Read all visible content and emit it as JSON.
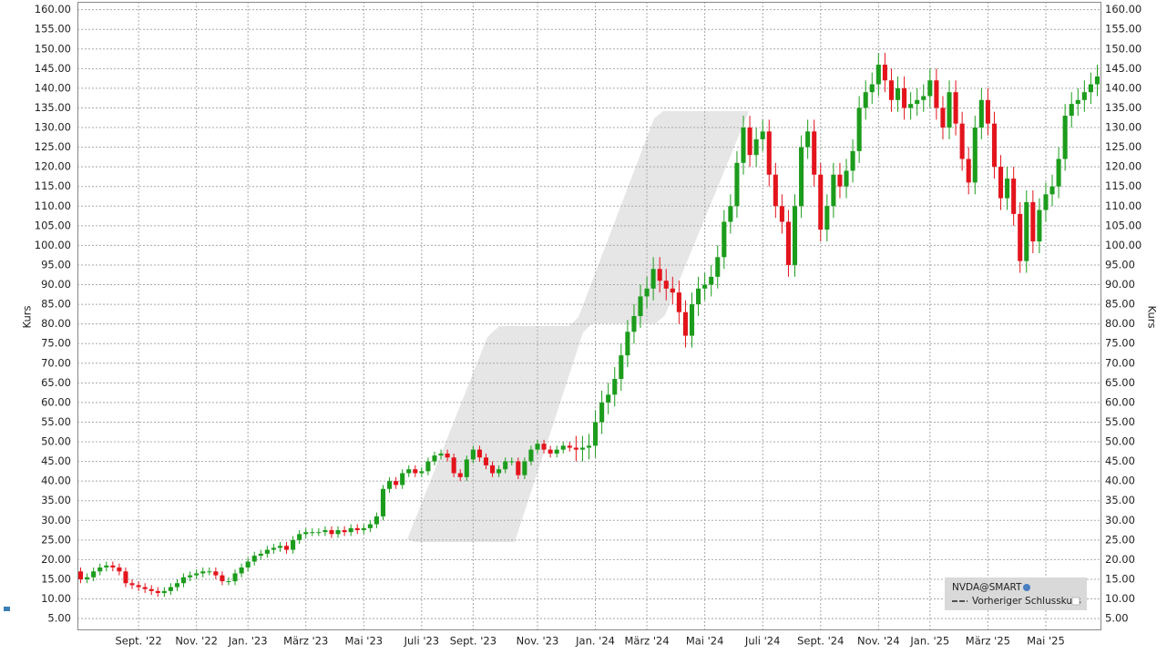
{
  "chart_data": {
    "type": "candlestick",
    "y_label": "Kurs",
    "categories": [
      null,
      null,
      null,
      null,
      null,
      null,
      null,
      null,
      null,
      "Sept. '22",
      null,
      null,
      null,
      null,
      null,
      null,
      null,
      null,
      "Nov. '22",
      null,
      null,
      null,
      null,
      null,
      null,
      null,
      "Jan. '23",
      null,
      null,
      null,
      null,
      null,
      null,
      null,
      null,
      "März '23",
      null,
      null,
      null,
      null,
      null,
      null,
      null,
      null,
      "Mai '23",
      null,
      null,
      null,
      null,
      null,
      null,
      null,
      null,
      "Juli '23",
      null,
      null,
      null,
      null,
      null,
      null,
      null,
      "Sept. '23",
      null,
      null,
      null,
      null,
      null,
      null,
      null,
      null,
      null,
      "Nov. '23",
      null,
      null,
      null,
      null,
      null,
      null,
      null,
      null,
      "Jan. '24",
      null,
      null,
      null,
      null,
      null,
      null,
      null,
      "März '24",
      null,
      null,
      null,
      null,
      null,
      null,
      null,
      null,
      "Mai '24",
      null,
      null,
      null,
      null,
      null,
      null,
      null,
      null,
      "Juli '24",
      null,
      null,
      null,
      null,
      null,
      null,
      null,
      null,
      "Sept. '24",
      null,
      null,
      null,
      null,
      null,
      null,
      null,
      null,
      "Nov. '24",
      null,
      null,
      null,
      null,
      null,
      null,
      null,
      "Jan. '25",
      null,
      null,
      null,
      null,
      null,
      null,
      null,
      null,
      "März '25",
      null,
      null,
      null,
      null,
      null,
      null,
      null,
      null,
      "Mai '25",
      null,
      null,
      null,
      null,
      null,
      null,
      null,
      null
    ],
    "series": [
      {
        "name": "NVDA@SMART",
        "up_color": "#1c9c1c",
        "down_color": "#e3141c",
        "open": [
          17,
          15,
          15.5,
          17,
          18,
          18.5,
          18,
          17,
          14,
          13.5,
          13,
          12.5,
          12,
          11.5,
          12,
          13,
          14,
          15.5,
          16,
          16.5,
          17,
          17,
          16,
          14.5,
          14.5,
          16.5,
          18,
          19.5,
          21,
          21.5,
          22.5,
          23,
          23.5,
          22.5,
          25,
          26.5,
          27,
          27,
          27,
          27.5,
          26.5,
          27.5,
          27,
          28,
          27.5,
          28,
          29,
          31,
          38,
          40,
          39,
          42,
          43,
          42,
          42.5,
          45,
          46.5,
          47,
          46,
          42,
          41,
          45.5,
          48,
          46,
          44,
          42,
          43,
          45,
          45,
          41.5,
          45,
          48,
          49.5,
          48,
          47,
          48,
          49,
          48.5,
          48,
          48.5,
          49,
          55,
          60,
          62,
          66,
          72,
          78,
          82,
          87,
          89,
          94,
          91,
          89,
          88,
          83,
          77,
          85,
          89,
          90,
          92,
          97,
          106,
          110,
          121,
          130,
          123,
          127,
          129,
          118,
          110,
          106,
          95,
          110,
          125,
          129,
          118,
          104,
          110,
          118,
          115,
          119,
          124,
          135,
          139,
          141,
          146,
          142,
          137,
          140,
          135,
          136,
          137,
          138,
          142,
          135,
          130,
          139,
          131,
          122,
          116,
          130,
          137,
          131,
          120,
          112,
          117,
          108,
          96,
          111,
          101,
          109,
          113,
          115,
          122,
          133,
          136,
          137,
          139,
          141
        ],
        "high": [
          18,
          16.5,
          18,
          19,
          19.5,
          19.5,
          19,
          18,
          15,
          14.5,
          14,
          13.5,
          13,
          13,
          14,
          15,
          16.5,
          17,
          17.5,
          18,
          18,
          18,
          17,
          15.5,
          17.5,
          19,
          20.5,
          22,
          22.5,
          23.5,
          24,
          24.5,
          24.5,
          26,
          27.5,
          28,
          28,
          28,
          28.5,
          28.5,
          28.5,
          28.5,
          29,
          29,
          29,
          30,
          32,
          39,
          41,
          41,
          43,
          44,
          44,
          43.5,
          46,
          47.5,
          48,
          48,
          47,
          43,
          46.5,
          49,
          49,
          47,
          45,
          44,
          46,
          46,
          46,
          46,
          49,
          50.5,
          50.5,
          49,
          49,
          50,
          50,
          51.5,
          51.5,
          52,
          58,
          63,
          65,
          69,
          75,
          81,
          85,
          90,
          92,
          97,
          97,
          94,
          92,
          91,
          86,
          88,
          92,
          93,
          95,
          100,
          109,
          113,
          124,
          133,
          133,
          130,
          132,
          132,
          121,
          113,
          109,
          113,
          128,
          132,
          132,
          121,
          113,
          121,
          121,
          122,
          127,
          138,
          142,
          144,
          149,
          149,
          145,
          143,
          143,
          139,
          140,
          141,
          145,
          145,
          138,
          142,
          142,
          134,
          125,
          133,
          140,
          140,
          134,
          123,
          120,
          120,
          111,
          114,
          114,
          112,
          116,
          118,
          125,
          136,
          139,
          140,
          142,
          144,
          146
        ],
        "low": [
          14,
          14,
          14.5,
          16,
          17,
          17,
          16,
          13,
          12.5,
          12,
          11.5,
          11,
          10.5,
          10.5,
          11,
          12,
          13,
          14.5,
          15,
          15.5,
          16,
          15,
          13.5,
          13.5,
          13.5,
          15.5,
          17,
          18.5,
          20,
          20.5,
          21.5,
          22,
          21.5,
          21.5,
          24,
          25.5,
          26,
          26,
          26,
          25.5,
          25.5,
          26,
          26,
          26.5,
          26.5,
          27,
          28,
          30,
          37,
          38,
          38,
          41,
          41,
          41,
          41.5,
          44,
          45.5,
          45,
          41,
          40,
          40,
          44.5,
          45,
          43,
          41,
          41,
          42,
          44,
          40.5,
          40.5,
          44,
          47,
          47,
          46,
          46,
          47,
          47.5,
          45,
          45,
          45.5,
          46,
          52,
          57,
          59,
          63,
          69,
          75,
          79,
          84,
          86,
          88,
          86,
          85,
          80,
          74,
          74,
          82,
          86,
          87,
          89,
          94,
          103,
          107,
          118,
          120,
          120,
          124,
          115,
          107,
          103,
          92,
          92,
          107,
          122,
          115,
          101,
          101,
          107,
          112,
          112,
          116,
          121,
          132,
          136,
          138,
          139,
          134,
          134,
          132,
          132,
          133,
          134,
          135,
          132,
          127,
          127,
          128,
          119,
          113,
          113,
          127,
          128,
          117,
          109,
          109,
          105,
          93,
          93,
          98,
          98,
          106,
          110,
          112,
          119,
          130,
          133,
          134,
          136,
          138
        ],
        "close": [
          15,
          15.5,
          17,
          18,
          18.5,
          18,
          17,
          14,
          13.5,
          13,
          12.5,
          12,
          11.5,
          12,
          13,
          14,
          15.5,
          16,
          16.5,
          17,
          17,
          16,
          14.5,
          14.5,
          16.5,
          18,
          19.5,
          21,
          21.5,
          22.5,
          23,
          23.5,
          22.5,
          25,
          26.5,
          27,
          27,
          27,
          27.5,
          26.5,
          27.5,
          27,
          28,
          27.5,
          28,
          29,
          31,
          38,
          40,
          39,
          42,
          43,
          42,
          42.5,
          45,
          46.5,
          47,
          46,
          42,
          41,
          45.5,
          48,
          46,
          44,
          42,
          43,
          45,
          45,
          41.5,
          45,
          48,
          49.5,
          48,
          47,
          48,
          49,
          48.5,
          48,
          48.5,
          49,
          55,
          60,
          62,
          66,
          72,
          78,
          82,
          87,
          89,
          94,
          91,
          89,
          88,
          83,
          77,
          85,
          89,
          90,
          92,
          97,
          106,
          110,
          121,
          130,
          123,
          127,
          129,
          118,
          110,
          106,
          95,
          110,
          125,
          129,
          118,
          104,
          110,
          118,
          115,
          119,
          124,
          135,
          139,
          141,
          146,
          142,
          137,
          140,
          135,
          136,
          137,
          138,
          142,
          135,
          130,
          139,
          131,
          122,
          116,
          130,
          137,
          131,
          120,
          112,
          117,
          108,
          96,
          111,
          101,
          109,
          113,
          115,
          122,
          133,
          136,
          137,
          139,
          141,
          143
        ]
      }
    ],
    "previous_close_label": "Vorheriger Schlusskurs",
    "ylim": [
      2,
      162
    ],
    "yticks": [
      {
        "value": 5,
        "label": "5.00"
      },
      {
        "value": 10,
        "label": "10.00"
      },
      {
        "value": 15,
        "label": "15.00"
      },
      {
        "value": 20,
        "label": "20.00"
      },
      {
        "value": 25,
        "label": "25.00"
      },
      {
        "value": 30,
        "label": "30.00"
      },
      {
        "value": 35,
        "label": "35.00"
      },
      {
        "value": 40,
        "label": "40.00"
      },
      {
        "value": 45,
        "label": "45.00"
      },
      {
        "value": 50,
        "label": "50.00"
      },
      {
        "value": 55,
        "label": "55.00"
      },
      {
        "value": 60,
        "label": "60.00"
      },
      {
        "value": 65,
        "label": "65.00"
      },
      {
        "value": 70,
        "label": "70.00"
      },
      {
        "value": 75,
        "label": "75.00"
      },
      {
        "value": 80,
        "label": "80.00"
      },
      {
        "value": 85,
        "label": "85.00"
      },
      {
        "value": 90,
        "label": "90.00"
      },
      {
        "value": 95,
        "label": "95.00"
      },
      {
        "value": 100,
        "label": "100.00"
      },
      {
        "value": 105,
        "label": "105.00"
      },
      {
        "value": 110,
        "label": "110.00"
      },
      {
        "value": 115,
        "label": "115.00"
      },
      {
        "value": 120,
        "label": "120.00"
      },
      {
        "value": 125,
        "label": "125.00"
      },
      {
        "value": 130,
        "label": "130.00"
      },
      {
        "value": 135,
        "label": "135.00"
      },
      {
        "value": 140,
        "label": "140.00"
      },
      {
        "value": 145,
        "label": "145.00"
      },
      {
        "value": 150,
        "label": "150.00"
      },
      {
        "value": 155,
        "label": "155.00"
      },
      {
        "value": 160,
        "label": "160.00"
      }
    ],
    "grid": true
  }
}
